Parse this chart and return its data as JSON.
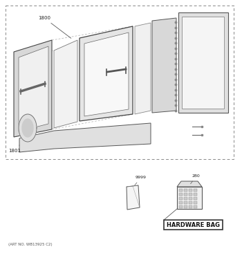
{
  "art_no": "(ART NO. WB13925 C2)",
  "bg_color": "#ffffff",
  "label_1800": "1800",
  "label_1801": "1801",
  "label_9999": "9999",
  "label_280": "280",
  "hardware_bag_text": "HARDWARE BAG",
  "line_color": "#555555",
  "dash_color": "#888888",
  "fill_light": "#f5f5f5",
  "fill_mid": "#e8e8e8",
  "fill_dark": "#cccccc",
  "edge_color": "#444444"
}
